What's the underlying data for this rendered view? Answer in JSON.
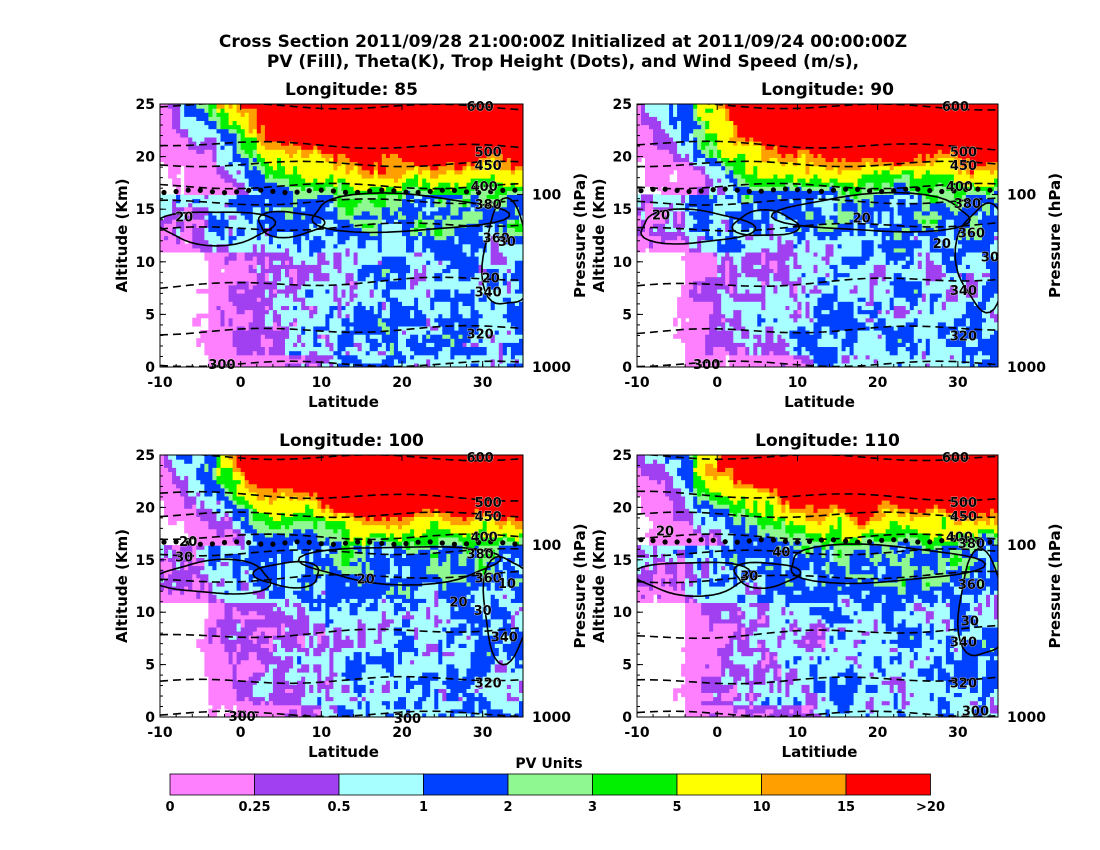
{
  "figure": {
    "title_line1": "Cross Section 2011/09/28 21:00:00Z Initialized at 2011/09/24 00:00:00Z",
    "title_line2": "PV (Fill), Theta(K), Trop Height (Dots), and Wind Speed (m/s),"
  },
  "colorbar": {
    "title": "PV Units",
    "bins": [
      {
        "label": "0",
        "color": "#ff80ff"
      },
      {
        "label": "0.25",
        "color": "#a040f0"
      },
      {
        "label": "0.5",
        "color": "#a8ffff"
      },
      {
        "label": "1",
        "color": "#0040ff"
      },
      {
        "label": "2",
        "color": "#90f890"
      },
      {
        "label": "3",
        "color": "#00f000"
      },
      {
        "label": "5",
        "color": "#ffff00"
      },
      {
        "label": "10",
        "color": "#ffa000"
      },
      {
        "label": "15",
        "color": "#ff0000"
      }
    ],
    "end_label": ">20"
  },
  "chart_data": [
    {
      "type": "heatmap",
      "title": "Longitude:  85",
      "xlabel": "Latitude",
      "ylabel": "Altitude (Km)",
      "y2label": "Pressure (hPa)",
      "xlim": [
        -10,
        35
      ],
      "ylim": [
        0,
        25
      ],
      "xticks": [
        "-10",
        "0",
        "10",
        "20",
        "30"
      ],
      "yticks": [
        "0",
        "5",
        "10",
        "15",
        "20",
        "25"
      ],
      "pressure_ticks": [
        "100",
        "1000"
      ],
      "trop_height_km": 16.7,
      "theta_labels": [
        {
          "text": "600",
          "lat": 28,
          "alt": 24.8
        },
        {
          "text": "500",
          "lat": 29,
          "alt": 20.5
        },
        {
          "text": "450",
          "lat": 29,
          "alt": 19.2
        },
        {
          "text": "400",
          "lat": 28.5,
          "alt": 17.2
        },
        {
          "text": "380",
          "lat": 29,
          "alt": 15.5
        },
        {
          "text": "360",
          "lat": 30,
          "alt": 12.3
        },
        {
          "text": "340",
          "lat": 29,
          "alt": 7.2
        },
        {
          "text": "320",
          "lat": 28,
          "alt": 3.2
        },
        {
          "text": "300",
          "lat": -4,
          "alt": 0.3
        }
      ],
      "wind_labels": [
        {
          "text": "20",
          "lat": -7,
          "alt": 14.3
        },
        {
          "text": "30",
          "lat": 33,
          "alt": 12
        },
        {
          "text": "20",
          "lat": 31,
          "alt": 8.5
        }
      ]
    },
    {
      "type": "heatmap",
      "title": "Longitude:  90",
      "xlabel": "Latitude",
      "ylabel": "Altitude (Km)",
      "y2label": "Pressure (hPa)",
      "xlim": [
        -10,
        35
      ],
      "ylim": [
        0,
        25
      ],
      "xticks": [
        "-10",
        "0",
        "10",
        "20",
        "30"
      ],
      "yticks": [
        "0",
        "5",
        "10",
        "15",
        "20",
        "25"
      ],
      "pressure_ticks": [
        "100",
        "1000"
      ],
      "trop_height_km": 16.8,
      "theta_labels": [
        {
          "text": "600",
          "lat": 28,
          "alt": 24.8
        },
        {
          "text": "500",
          "lat": 29,
          "alt": 20.5
        },
        {
          "text": "450",
          "lat": 29,
          "alt": 19.2
        },
        {
          "text": "400",
          "lat": 28.5,
          "alt": 17.2
        },
        {
          "text": "380",
          "lat": 29.5,
          "alt": 15.6
        },
        {
          "text": "360",
          "lat": 30,
          "alt": 12.8
        },
        {
          "text": "340",
          "lat": 29,
          "alt": 7.3
        },
        {
          "text": "320",
          "lat": 29,
          "alt": 3
        },
        {
          "text": "300",
          "lat": -3,
          "alt": 0.3
        }
      ],
      "wind_labels": [
        {
          "text": "20",
          "lat": -7,
          "alt": 14.5
        },
        {
          "text": "20",
          "lat": 18,
          "alt": 14.2
        },
        {
          "text": "20",
          "lat": 28,
          "alt": 11.8
        },
        {
          "text": "30",
          "lat": 34,
          "alt": 10.5
        }
      ]
    },
    {
      "type": "heatmap",
      "title": "Longitude:  100",
      "xlabel": "Latitude",
      "ylabel": "Altitude (Km)",
      "y2label": "Pressure (hPa)",
      "xlim": [
        -10,
        35
      ],
      "ylim": [
        0,
        25
      ],
      "xticks": [
        "-10",
        "0",
        "10",
        "20",
        "30"
      ],
      "yticks": [
        "0",
        "5",
        "10",
        "15",
        "20",
        "25"
      ],
      "pressure_ticks": [
        "100",
        "1000"
      ],
      "trop_height_km": 16.6,
      "theta_labels": [
        {
          "text": "600",
          "lat": 28,
          "alt": 24.8
        },
        {
          "text": "500",
          "lat": 29,
          "alt": 20.5
        },
        {
          "text": "450",
          "lat": 29,
          "alt": 19.2
        },
        {
          "text": "400",
          "lat": 28.5,
          "alt": 17.2
        },
        {
          "text": "380",
          "lat": 28,
          "alt": 15.6
        },
        {
          "text": "360",
          "lat": 29,
          "alt": 13.3
        },
        {
          "text": "340",
          "lat": 31,
          "alt": 7.7
        },
        {
          "text": "320",
          "lat": 29,
          "alt": 3.3
        },
        {
          "text": "300",
          "lat": -1.5,
          "alt": 0.1
        },
        {
          "text": "300",
          "lat": 19,
          "alt": -0.1
        }
      ],
      "wind_labels": [
        {
          "text": "20",
          "lat": -6.5,
          "alt": 16.8
        },
        {
          "text": "30",
          "lat": -7,
          "alt": 15.3
        },
        {
          "text": "20",
          "lat": 15.5,
          "alt": 13.2
        },
        {
          "text": "20",
          "lat": 27,
          "alt": 11
        },
        {
          "text": "30",
          "lat": 30,
          "alt": 10.2
        },
        {
          "text": "10",
          "lat": 33,
          "alt": 12.8
        }
      ]
    },
    {
      "type": "heatmap",
      "title": "Longitude:  110",
      "xlabel": "Latitiude",
      "ylabel": "Altitude (Km)",
      "y2label": "Pressure (hPa)",
      "xlim": [
        -10,
        35
      ],
      "ylim": [
        0,
        25
      ],
      "xticks": [
        "-10",
        "0",
        "10",
        "20",
        "30"
      ],
      "yticks": [
        "0",
        "5",
        "10",
        "15",
        "20",
        "25"
      ],
      "pressure_ticks": [
        "100",
        "1000"
      ],
      "trop_height_km": 16.8,
      "theta_labels": [
        {
          "text": "600",
          "lat": 28,
          "alt": 24.8
        },
        {
          "text": "500",
          "lat": 29,
          "alt": 20.5
        },
        {
          "text": "450",
          "lat": 29,
          "alt": 19.2
        },
        {
          "text": "400",
          "lat": 28.5,
          "alt": 17.2
        },
        {
          "text": "380",
          "lat": 30,
          "alt": 16.6
        },
        {
          "text": "360",
          "lat": 30,
          "alt": 12.7
        },
        {
          "text": "340",
          "lat": 29,
          "alt": 7.2
        },
        {
          "text": "320",
          "lat": 29,
          "alt": 3.3
        },
        {
          "text": "300",
          "lat": 30.5,
          "alt": 0.6
        }
      ],
      "wind_labels": [
        {
          "text": "20",
          "lat": -6.5,
          "alt": 17.8
        },
        {
          "text": "40",
          "lat": 8,
          "alt": 15.8
        },
        {
          "text": "30",
          "lat": 4,
          "alt": 13.5
        },
        {
          "text": "30",
          "lat": 31.5,
          "alt": 9.2
        }
      ]
    }
  ]
}
